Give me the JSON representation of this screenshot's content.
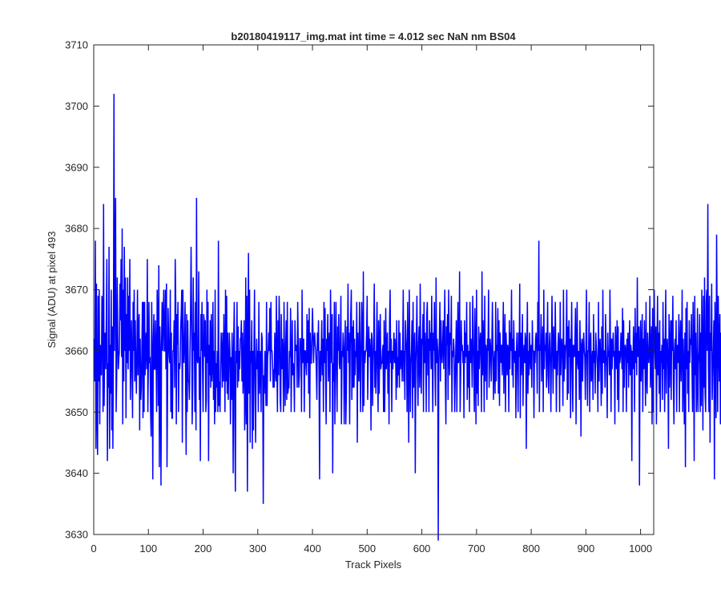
{
  "chart_data": {
    "type": "line",
    "title": "b20180419117_img.mat int time = 4.012 sec  NaN nm BS04",
    "xlabel": "Track Pixels",
    "ylabel": "Signal (ADU) at pixel 493",
    "xlim": [
      0,
      1024
    ],
    "ylim": [
      3630,
      3710
    ],
    "xticks": [
      0,
      100,
      200,
      300,
      400,
      500,
      600,
      700,
      800,
      900,
      1000
    ],
    "yticks": [
      3630,
      3640,
      3650,
      3660,
      3670,
      3680,
      3690,
      3700,
      3710
    ],
    "grid": false,
    "line_color": "#0000ff",
    "series": [
      {
        "x_start": 1,
        "x_step": 1,
        "values": [
          3662,
          3655,
          3678,
          3644,
          3671,
          3650,
          3643,
          3669,
          3655,
          3670,
          3648,
          3661,
          3658,
          3656,
          3669,
          3667,
          3650,
          3684,
          3651,
          3660,
          3663,
          3657,
          3665,
          3675,
          3642,
          3658,
          3654,
          3677,
          3644,
          3661,
          3653,
          3670,
          3647,
          3664,
          3644,
          3660,
          3702,
          3660,
          3672,
          3685,
          3650,
          3656,
          3672,
          3662,
          3657,
          3659,
          3660,
          3671,
          3665,
          3675,
          3659,
          3680,
          3648,
          3670,
          3655,
          3677,
          3660,
          3672,
          3649,
          3666,
          3658,
          3672,
          3657,
          3669,
          3660,
          3675,
          3652,
          3658,
          3665,
          3657,
          3649,
          3668,
          3660,
          3670,
          3655,
          3665,
          3658,
          3653,
          3660,
          3670,
          3656,
          3664,
          3666,
          3647,
          3662,
          3652,
          3654,
          3660,
          3668,
          3649,
          3668,
          3650,
          3668,
          3656,
          3661,
          3663,
          3657,
          3675,
          3650,
          3658,
          3668,
          3658,
          3659,
          3650,
          3646,
          3668,
          3658,
          3639,
          3662,
          3666,
          3657,
          3657,
          3665,
          3660,
          3650,
          3670,
          3665,
          3651,
          3674,
          3641,
          3664,
          3659,
          3638,
          3661,
          3668,
          3660,
          3665,
          3670,
          3660,
          3660,
          3670,
          3657,
          3671,
          3641,
          3653,
          3667,
          3662,
          3659,
          3658,
          3670,
          3650,
          3663,
          3649,
          3649,
          3660,
          3660,
          3665,
          3654,
          3675,
          3668,
          3648,
          3666,
          3661,
          3668,
          3650,
          3658,
          3657,
          3658,
          3664,
          3666,
          3670,
          3645,
          3670,
          3660,
          3658,
          3662,
          3668,
          3655,
          3643,
          3666,
          3650,
          3665,
          3655,
          3655,
          3652,
          3660,
          3666,
          3677,
          3666,
          3648,
          3654,
          3672,
          3660,
          3663,
          3650,
          3668,
          3647,
          3685,
          3659,
          3658,
          3659,
          3673,
          3652,
          3659,
          3642,
          3666,
          3660,
          3668,
          3657,
          3650,
          3666,
          3665,
          3659,
          3665,
          3650,
          3652,
          3670,
          3658,
          3668,
          3642,
          3661,
          3656,
          3665,
          3654,
          3666,
          3655,
          3658,
          3668,
          3652,
          3660,
          3648,
          3670,
          3650,
          3658,
          3654,
          3660,
          3650,
          3678,
          3651,
          3655,
          3650,
          3658,
          3663,
          3660,
          3654,
          3663,
          3655,
          3666,
          3659,
          3650,
          3670,
          3655,
          3669,
          3653,
          3663,
          3652,
          3658,
          3663,
          3660,
          3648,
          3659,
          3652,
          3663,
          3658,
          3640,
          3662,
          3668,
          3649,
          3637,
          3660,
          3658,
          3668,
          3654,
          3664,
          3655,
          3660,
          3657,
          3662,
          3662,
          3665,
          3655,
          3663,
          3653,
          3657,
          3665,
          3647,
          3652,
          3672,
          3648,
          3669,
          3637,
          3661,
          3676,
          3653,
          3670,
          3645,
          3660,
          3658,
          3665,
          3644,
          3660,
          3647,
          3660,
          3670,
          3655,
          3645,
          3658,
          3662,
          3657,
          3660,
          3650,
          3668,
          3653,
          3658,
          3660,
          3650,
          3663,
          3662,
          3655,
          3635,
          3656,
          3653,
          3660,
          3656,
          3651,
          3668,
          3651,
          3659,
          3660,
          3663,
          3660,
          3667,
          3655,
          3668,
          3660,
          3660,
          3658,
          3654,
          3657,
          3654,
          3663,
          3658,
          3655,
          3669,
          3657,
          3650,
          3665,
          3656,
          3669,
          3664,
          3652,
          3650,
          3666,
          3657,
          3662,
          3659,
          3650,
          3668,
          3658,
          3651,
          3661,
          3665,
          3652,
          3668,
          3653,
          3654,
          3654,
          3660,
          3659,
          3667,
          3650,
          3658,
          3665,
          3656,
          3658,
          3656,
          3650,
          3665,
          3660,
          3661,
          3660,
          3654,
          3668,
          3661,
          3654,
          3656,
          3662,
          3662,
          3660,
          3650,
          3670,
          3658,
          3661,
          3662,
          3650,
          3660,
          3660,
          3658,
          3656,
          3666,
          3658,
          3665,
          3653,
          3667,
          3649,
          3663,
          3658,
          3658,
          3662,
          3667,
          3663,
          3658,
          3662,
          3663,
          3661,
          3660,
          3657,
          3652,
          3663,
          3660,
          3665,
          3655,
          3639,
          3660,
          3655,
          3660,
          3665,
          3656,
          3662,
          3650,
          3668,
          3658,
          3667,
          3656,
          3648,
          3662,
          3660,
          3666,
          3655,
          3661,
          3663,
          3650,
          3670,
          3662,
          3658,
          3666,
          3640,
          3658,
          3655,
          3668,
          3648,
          3660,
          3668,
          3657,
          3650,
          3664,
          3660,
          3666,
          3658,
          3657,
          3662,
          3669,
          3648,
          3660,
          3659,
          3663,
          3660,
          3648,
          3660,
          3665,
          3648,
          3653,
          3664,
          3660,
          3671,
          3658,
          3663,
          3648,
          3660,
          3666,
          3670,
          3652,
          3664,
          3654,
          3665,
          3654,
          3662,
          3656,
          3660,
          3659,
          3668,
          3645,
          3663,
          3658,
          3655,
          3668,
          3660,
          3650,
          3660,
          3668,
          3663,
          3650,
          3673,
          3651,
          3660,
          3658,
          3660,
          3660,
          3663,
          3669,
          3652,
          3658,
          3664,
          3659,
          3662,
          3660,
          3647,
          3663,
          3662,
          3651,
          3658,
          3662,
          3671,
          3654,
          3660,
          3653,
          3660,
          3668,
          3657,
          3650,
          3665,
          3653,
          3661,
          3666,
          3657,
          3658,
          3658,
          3660,
          3661,
          3650,
          3665,
          3650,
          3658,
          3667,
          3657,
          3660,
          3663,
          3653,
          3660,
          3648,
          3665,
          3670,
          3658,
          3662,
          3650,
          3660,
          3657,
          3660,
          3663,
          3658,
          3662,
          3660,
          3652,
          3665,
          3654,
          3659,
          3656,
          3665,
          3654,
          3663,
          3657,
          3660,
          3660,
          3655,
          3661,
          3670,
          3655,
          3660,
          3652,
          3665,
          3662,
          3660,
          3650,
          3668,
          3660,
          3645,
          3670,
          3660,
          3650,
          3658,
          3660,
          3665,
          3649,
          3668,
          3654,
          3660,
          3663,
          3640,
          3658,
          3662,
          3669,
          3656,
          3651,
          3661,
          3664,
          3654,
          3671,
          3658,
          3653,
          3662,
          3661,
          3666,
          3650,
          3668,
          3658,
          3663,
          3660,
          3650,
          3666,
          3668,
          3656,
          3662,
          3650,
          3665,
          3660,
          3663,
          3657,
          3669,
          3659,
          3650,
          3663,
          3660,
          3668,
          3657,
          3651,
          3672,
          3658,
          3662,
          3660,
          3629,
          3658,
          3662,
          3668,
          3655,
          3665,
          3660,
          3658,
          3661,
          3665,
          3657,
          3663,
          3670,
          3655,
          3648,
          3664,
          3661,
          3666,
          3652,
          3670,
          3660,
          3656,
          3663,
          3661,
          3669,
          3650,
          3660,
          3659,
          3662,
          3660,
          3650,
          3655,
          3660,
          3665,
          3650,
          3660,
          3668,
          3658,
          3659,
          3673,
          3650,
          3656,
          3665,
          3660,
          3661,
          3658,
          3660,
          3649,
          3665,
          3658,
          3663,
          3659,
          3668,
          3652,
          3661,
          3654,
          3660,
          3650,
          3668,
          3658,
          3662,
          3660,
          3654,
          3669,
          3663,
          3657,
          3650,
          3667,
          3660,
          3648,
          3670,
          3653,
          3660,
          3651,
          3664,
          3657,
          3660,
          3663,
          3660,
          3650,
          3673,
          3656,
          3665,
          3661,
          3650,
          3669,
          3655,
          3661,
          3660,
          3652,
          3662,
          3660,
          3670,
          3654,
          3658,
          3662,
          3660,
          3655,
          3661,
          3668,
          3660,
          3652,
          3658,
          3660,
          3653,
          3668,
          3655,
          3661,
          3660,
          3667,
          3653,
          3665,
          3651,
          3663,
          3660,
          3658,
          3661,
          3656,
          3660,
          3668,
          3653,
          3660,
          3666,
          3650,
          3663,
          3660,
          3656,
          3661,
          3660,
          3650,
          3665,
          3657,
          3663,
          3660,
          3670,
          3656,
          3662,
          3654,
          3665,
          3660,
          3658,
          3660,
          3649,
          3660,
          3663,
          3657,
          3650,
          3663,
          3659,
          3671,
          3649,
          3663,
          3656,
          3660,
          3666,
          3651,
          3659,
          3661,
          3658,
          3663,
          3662,
          3644,
          3660,
          3668,
          3653,
          3660,
          3656,
          3663,
          3659,
          3657,
          3661,
          3654,
          3665,
          3660,
          3660,
          3649,
          3660,
          3658,
          3662,
          3663,
          3660,
          3653,
          3668,
          3660,
          3678,
          3650,
          3661,
          3660,
          3666,
          3655,
          3660,
          3664,
          3650,
          3670,
          3657,
          3661,
          3660,
          3663,
          3654,
          3660,
          3668,
          3656,
          3653,
          3661,
          3663,
          3658,
          3650,
          3660,
          3669,
          3660,
          3653,
          3664,
          3658,
          3657,
          3668,
          3660,
          3650,
          3660,
          3656,
          3661,
          3663,
          3660,
          3650,
          3668,
          3656,
          3660,
          3662,
          3659,
          3651,
          3670,
          3655,
          3661,
          3657,
          3660,
          3662,
          3670,
          3652,
          3664,
          3653,
          3665,
          3659,
          3662,
          3649,
          3660,
          3668,
          3658,
          3650,
          3661,
          3660,
          3659,
          3662,
          3667,
          3648,
          3660,
          3668,
          3658,
          3657,
          3660,
          3652,
          3665,
          3660,
          3646,
          3661,
          3662,
          3655,
          3660,
          3663,
          3660,
          3659,
          3652,
          3661,
          3670,
          3659,
          3651,
          3660,
          3660,
          3668,
          3650,
          3660,
          3663,
          3655,
          3657,
          3660,
          3652,
          3666,
          3658,
          3660,
          3653,
          3663,
          3661,
          3659,
          3657,
          3650,
          3668,
          3655,
          3660,
          3662,
          3658,
          3651,
          3664,
          3653,
          3670,
          3658,
          3660,
          3660,
          3654,
          3666,
          3660,
          3657,
          3649,
          3663,
          3659,
          3660,
          3656,
          3670,
          3660,
          3650,
          3662,
          3657,
          3661,
          3663,
          3659,
          3660,
          3648,
          3664,
          3660,
          3657,
          3665,
          3652,
          3664,
          3650,
          3660,
          3658,
          3659,
          3663,
          3660,
          3657,
          3667,
          3650,
          3665,
          3654,
          3660,
          3661,
          3660,
          3650,
          3662,
          3658,
          3663,
          3654,
          3660,
          3665,
          3656,
          3661,
          3660,
          3642,
          3660,
          3657,
          3664,
          3660,
          3650,
          3667,
          3658,
          3663,
          3656,
          3672,
          3659,
          3661,
          3664,
          3638,
          3660,
          3665,
          3655,
          3660,
          3666,
          3650,
          3662,
          3657,
          3665,
          3660,
          3651,
          3668,
          3656,
          3653,
          3663,
          3660,
          3658,
          3660,
          3669,
          3654,
          3660,
          3664,
          3648,
          3667,
          3650,
          3662,
          3670,
          3660,
          3657,
          3664,
          3648,
          3660,
          3669,
          3656,
          3663,
          3653,
          3665,
          3650,
          3660,
          3658,
          3661,
          3652,
          3668,
          3657,
          3662,
          3650,
          3661,
          3670,
          3653,
          3660,
          3662,
          3658,
          3644,
          3666,
          3654,
          3660,
          3665,
          3652,
          3665,
          3660,
          3669,
          3655,
          3648,
          3660,
          3662,
          3657,
          3665,
          3650,
          3661,
          3658,
          3659,
          3666,
          3650,
          3661,
          3665,
          3655,
          3660,
          3670,
          3650,
          3662,
          3657,
          3648,
          3663,
          3641,
          3667,
          3657,
          3668,
          3653,
          3660,
          3650,
          3665,
          3658,
          3662,
          3661,
          3666,
          3657,
          3650,
          3668,
          3660,
          3642,
          3669,
          3656,
          3663,
          3650,
          3654,
          3667,
          3650,
          3658,
          3660,
          3666,
          3650,
          3663,
          3651,
          3670,
          3660,
          3647,
          3669,
          3654,
          3672,
          3653,
          3650,
          3668,
          3670,
          3660,
          3684,
          3658,
          3650,
          3669,
          3645,
          3663,
          3660,
          3671,
          3652,
          3657,
          3660,
          3665,
          3639,
          3668,
          3660,
          3649,
          3679,
          3665,
          3650,
          3669,
          3661,
          3655,
          3666,
          3648,
          3663,
          3649,
          3672,
          3660,
          3670,
          3651,
          3652,
          3673,
          3660,
          3650,
          3667,
          3641,
          3662,
          3654,
          3634,
          3660,
          3663,
          3672,
          3642,
          3660,
          3661,
          3659,
          3654,
          3658
        ]
      }
    ]
  }
}
